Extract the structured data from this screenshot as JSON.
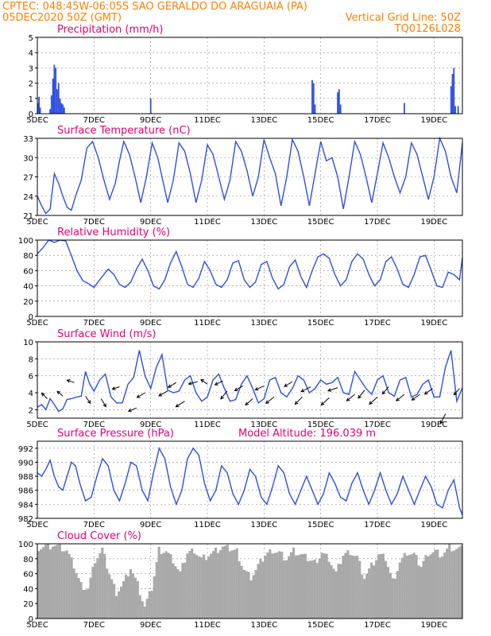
{
  "header": {
    "line1": "CPTEC:   048:45W-06:05S  SAO GERALDO DO ARAGUAIA (PA)",
    "line2_left": "05DEC2020 50Z (GMT)",
    "line2_right": "Vertical Grid Line: 50Z",
    "line3_right": "TQ0126L028"
  },
  "colors": {
    "header": "#ff8000",
    "panel_title": "#e8006e",
    "series": "#2f4fe0",
    "cloud": "#a9a9a9",
    "arrow": "#000000"
  },
  "x_axis": {
    "labels": [
      "5DEC",
      "7DEC",
      "9DEC",
      "11DEC",
      "13DEC",
      "15DEC",
      "17DEC",
      "19DEC"
    ],
    "label_days": [
      5,
      7,
      9,
      11,
      13,
      15,
      17,
      19
    ],
    "day_range": [
      5,
      20
    ]
  },
  "chart_data": [
    {
      "id": "precip",
      "type": "bar",
      "title": "Precipitation (mm/h)",
      "ylim": [
        0,
        5
      ],
      "yticks": [
        0,
        1,
        2,
        3,
        4,
        5
      ],
      "x": [
        5.02,
        5.06,
        5.1,
        5.45,
        5.5,
        5.55,
        5.6,
        5.65,
        5.7,
        5.75,
        5.8,
        5.85,
        5.9,
        5.95,
        9.0,
        14.7,
        14.75,
        14.8,
        15.6,
        15.65,
        15.7,
        17.95,
        19.6,
        19.65,
        19.7,
        19.75,
        19.85
      ],
      "values": [
        0.7,
        1.1,
        0.4,
        0.3,
        1.2,
        2.3,
        3.2,
        3.0,
        1.6,
        2.0,
        1.0,
        0.7,
        0.6,
        0.4,
        1.0,
        2.2,
        2.0,
        0.6,
        1.4,
        1.6,
        0.6,
        0.7,
        1.8,
        2.6,
        3.0,
        0.5,
        0.5
      ]
    },
    {
      "id": "temp",
      "type": "line",
      "title": "Surface Temperature (nC)",
      "ylim": [
        21,
        33
      ],
      "yticks": [
        21,
        24,
        27,
        30,
        33
      ],
      "x": [
        5,
        5.15,
        5.3,
        5.45,
        5.6,
        5.75,
        5.9,
        6.05,
        6.2,
        6.35,
        6.55,
        6.75,
        6.95,
        7.15,
        7.35,
        7.55,
        7.75,
        7.9,
        8.05,
        8.25,
        8.45,
        8.65,
        8.85,
        9.05,
        9.25,
        9.45,
        9.6,
        9.8,
        10.0,
        10.2,
        10.4,
        10.6,
        10.8,
        11.0,
        11.2,
        11.4,
        11.6,
        11.8,
        12.0,
        12.2,
        12.4,
        12.6,
        12.8,
        13.0,
        13.2,
        13.4,
        13.6,
        13.8,
        14.0,
        14.2,
        14.4,
        14.6,
        14.8,
        15.0,
        15.2,
        15.4,
        15.6,
        15.8,
        16.0,
        16.2,
        16.4,
        16.6,
        16.8,
        17.0,
        17.2,
        17.4,
        17.6,
        17.8,
        18.0,
        18.2,
        18.4,
        18.6,
        18.8,
        19.0,
        19.2,
        19.4,
        19.6,
        19.8,
        20.0
      ],
      "values": [
        24,
        22.5,
        21.3,
        22,
        27.5,
        26,
        24,
        22.3,
        21.8,
        24,
        26.5,
        31.5,
        32.5,
        30,
        26.5,
        23.5,
        26,
        29.5,
        32.5,
        30.5,
        27,
        23,
        27,
        32.3,
        30,
        26,
        23,
        26.5,
        32.3,
        31,
        27.5,
        23,
        26.5,
        32,
        30.5,
        27,
        23.5,
        26.5,
        32.5,
        31,
        28,
        24,
        27,
        32.8,
        30,
        27.5,
        22.5,
        27,
        32.8,
        31,
        27,
        22.5,
        27.5,
        32.5,
        29.5,
        30,
        27,
        22,
        27,
        32.5,
        30.5,
        27,
        23,
        27.5,
        32.3,
        30,
        27,
        24.5,
        27,
        32.3,
        30.5,
        27,
        23.5,
        27,
        33,
        31,
        27,
        24.5,
        32.3
      ]
    },
    {
      "id": "rh",
      "type": "line",
      "title": "Relative Humidity (%)",
      "ylim": [
        0,
        100
      ],
      "yticks": [
        0,
        20,
        40,
        60,
        80,
        100
      ],
      "x": [
        5,
        5.2,
        5.4,
        5.6,
        5.8,
        6.0,
        6.2,
        6.4,
        6.6,
        6.8,
        7.0,
        7.2,
        7.5,
        7.7,
        7.9,
        8.1,
        8.3,
        8.5,
        8.7,
        8.9,
        9.1,
        9.3,
        9.5,
        9.7,
        9.9,
        10.1,
        10.3,
        10.5,
        10.7,
        10.9,
        11.1,
        11.3,
        11.5,
        11.7,
        11.9,
        12.1,
        12.3,
        12.5,
        12.7,
        12.9,
        13.1,
        13.3,
        13.5,
        13.7,
        13.9,
        14.1,
        14.3,
        14.5,
        14.7,
        14.9,
        15.1,
        15.3,
        15.5,
        15.7,
        15.9,
        16.1,
        16.3,
        16.5,
        16.7,
        16.9,
        17.1,
        17.3,
        17.5,
        17.7,
        17.9,
        18.1,
        18.3,
        18.5,
        18.7,
        18.9,
        19.1,
        19.3,
        19.5,
        19.7,
        19.9,
        20.0
      ],
      "values": [
        82,
        90,
        100,
        97,
        100,
        99,
        80,
        60,
        47,
        43,
        38,
        48,
        62,
        55,
        42,
        38,
        45,
        62,
        75,
        60,
        40,
        36,
        48,
        70,
        85,
        65,
        42,
        38,
        50,
        72,
        60,
        42,
        38,
        48,
        70,
        73,
        48,
        38,
        45,
        68,
        72,
        50,
        36,
        42,
        65,
        74,
        52,
        38,
        60,
        78,
        82,
        76,
        55,
        40,
        48,
        72,
        82,
        75,
        55,
        40,
        48,
        72,
        78,
        62,
        42,
        38,
        55,
        78,
        80,
        60,
        40,
        38,
        58,
        55,
        48,
        77
      ]
    },
    {
      "id": "wind",
      "type": "line",
      "title": "Surface Wind (m/s)",
      "ylim": [
        1,
        10
      ],
      "yticks": [
        2,
        4,
        6,
        8,
        10
      ],
      "x": [
        5,
        5.15,
        5.3,
        5.45,
        5.6,
        5.75,
        5.9,
        6.05,
        6.2,
        6.4,
        6.55,
        6.7,
        6.85,
        7.0,
        7.2,
        7.4,
        7.6,
        7.8,
        8.0,
        8.2,
        8.4,
        8.6,
        8.8,
        9.0,
        9.2,
        9.4,
        9.6,
        9.8,
        10.0,
        10.2,
        10.4,
        10.6,
        10.8,
        11.0,
        11.2,
        11.4,
        11.6,
        11.8,
        12.0,
        12.2,
        12.4,
        12.6,
        12.8,
        13.0,
        13.2,
        13.4,
        13.6,
        13.8,
        14.0,
        14.2,
        14.4,
        14.6,
        14.8,
        15.0,
        15.2,
        15.4,
        15.6,
        15.8,
        16.0,
        16.2,
        16.4,
        16.6,
        16.8,
        17.0,
        17.2,
        17.4,
        17.6,
        17.8,
        18.0,
        18.2,
        18.4,
        18.6,
        18.8,
        19.0,
        19.2,
        19.4,
        19.6,
        19.8,
        20.0
      ],
      "values": [
        2.3,
        2.6,
        2.0,
        3.3,
        2.6,
        1.8,
        2.1,
        3.2,
        3.3,
        3.5,
        3.6,
        6.5,
        5.0,
        4.2,
        5.5,
        6.2,
        3.5,
        2.8,
        2.8,
        5.0,
        5.8,
        9.0,
        6.0,
        4.5,
        7.0,
        8.5,
        4.3,
        4.0,
        4.2,
        5.5,
        6.0,
        4.0,
        3.0,
        3.5,
        5.5,
        6.2,
        4.5,
        3.0,
        3.2,
        5.0,
        6.0,
        4.5,
        2.8,
        3.3,
        5.5,
        5.8,
        4.0,
        3.5,
        4.5,
        6.0,
        5.5,
        4.0,
        4.5,
        5.5,
        5.0,
        5.2,
        5.8,
        4.0,
        3.8,
        6.5,
        5.5,
        4.5,
        3.8,
        5.5,
        6.0,
        4.0,
        3.6,
        5.5,
        5.8,
        3.5,
        3.8,
        5.0,
        5.5,
        3.5,
        3.5,
        7.0,
        9.0,
        3.0,
        4.6
      ]
    },
    {
      "id": "pressure",
      "type": "line",
      "title": "Surface Pressure (hPa)",
      "annotation": "Model Altitude: 196.039 m",
      "ylim": [
        982,
        993
      ],
      "yticks": [
        982,
        984,
        986,
        988,
        990,
        992
      ],
      "x": [
        5,
        5.15,
        5.3,
        5.45,
        5.6,
        5.75,
        5.9,
        6.05,
        6.2,
        6.35,
        6.5,
        6.7,
        6.9,
        7.1,
        7.3,
        7.5,
        7.7,
        7.9,
        8.1,
        8.3,
        8.5,
        8.7,
        8.9,
        9.1,
        9.3,
        9.5,
        9.7,
        9.9,
        10.1,
        10.3,
        10.5,
        10.7,
        10.9,
        11.1,
        11.3,
        11.5,
        11.7,
        11.9,
        12.1,
        12.3,
        12.5,
        12.7,
        12.9,
        13.1,
        13.3,
        13.5,
        13.7,
        13.9,
        14.1,
        14.3,
        14.5,
        14.7,
        14.9,
        15.1,
        15.3,
        15.5,
        15.7,
        15.9,
        16.1,
        16.3,
        16.5,
        16.7,
        16.9,
        17.1,
        17.3,
        17.5,
        17.7,
        17.9,
        18.1,
        18.3,
        18.5,
        18.7,
        18.9,
        19.1,
        19.3,
        19.5,
        19.7,
        19.9,
        20.0
      ],
      "values": [
        988.5,
        988,
        989,
        990.3,
        988,
        986.5,
        986,
        988,
        990,
        989.5,
        987,
        984.5,
        985,
        988,
        990.5,
        989.5,
        986,
        984.5,
        987,
        990,
        989.5,
        986,
        984.5,
        988.5,
        992,
        990.5,
        986.5,
        984,
        986,
        990.5,
        992,
        991,
        987,
        984.5,
        986,
        989.5,
        988.5,
        985.5,
        984,
        986,
        989,
        988,
        985,
        984,
        986.5,
        989.5,
        988.5,
        985.5,
        984,
        986,
        988,
        986,
        984,
        985.5,
        988.5,
        987,
        985,
        984.5,
        987,
        988.5,
        986,
        984,
        986,
        988.5,
        986,
        984,
        985.5,
        988,
        986,
        984,
        986,
        988,
        986.5,
        984,
        983.5,
        986,
        987.5,
        983.5,
        982.5
      ]
    },
    {
      "id": "cloud",
      "type": "area",
      "title": "Cloud Cover (%)",
      "ylim": [
        0,
        100
      ],
      "yticks": [
        0,
        20,
        40,
        60,
        80,
        100
      ],
      "x": [
        5,
        5.25,
        5.5,
        5.75,
        6.0,
        6.25,
        6.5,
        6.75,
        7.0,
        7.25,
        7.5,
        7.75,
        8.0,
        8.25,
        8.5,
        8.75,
        9.0,
        9.25,
        9.5,
        9.75,
        10.0,
        10.25,
        10.5,
        10.75,
        11.0,
        11.25,
        11.5,
        11.75,
        12.0,
        12.25,
        12.5,
        12.75,
        13.0,
        13.25,
        13.5,
        13.75,
        14.0,
        14.25,
        14.5,
        14.75,
        15.0,
        15.25,
        15.5,
        15.75,
        16.0,
        16.25,
        16.5,
        16.75,
        17.0,
        17.25,
        17.5,
        17.75,
        18.0,
        18.25,
        18.5,
        18.75,
        19.0,
        19.25,
        19.5,
        19.75,
        20.0
      ],
      "values": [
        95,
        97,
        98,
        96,
        90,
        70,
        45,
        40,
        78,
        92,
        60,
        35,
        48,
        68,
        45,
        15,
        40,
        92,
        90,
        78,
        60,
        88,
        92,
        80,
        85,
        90,
        95,
        93,
        90,
        65,
        55,
        70,
        85,
        92,
        88,
        80,
        90,
        85,
        80,
        75,
        88,
        80,
        60,
        85,
        90,
        82,
        55,
        70,
        85,
        80,
        50,
        75,
        88,
        85,
        70,
        88,
        90,
        85,
        95,
        92,
        93
      ]
    }
  ],
  "wind_arrows": [
    {
      "day": 5.35,
      "speed": 3.3,
      "dx": -7,
      "dy": -7
    },
    {
      "day": 5.9,
      "speed": 3.6,
      "dx": -7,
      "dy": -6
    },
    {
      "day": 6.3,
      "speed": 5.2,
      "dx": -9,
      "dy": -3
    },
    {
      "day": 6.7,
      "speed": 3.6,
      "dx": 6,
      "dy": 9
    },
    {
      "day": 7.25,
      "speed": 3.3,
      "dx": 6,
      "dy": 10
    },
    {
      "day": 7.9,
      "speed": 4.7,
      "dx": -9,
      "dy": 3
    },
    {
      "day": 8.5,
      "speed": 2.2,
      "dx": -10,
      "dy": 4
    },
    {
      "day": 8.8,
      "speed": 4.0,
      "dx": -10,
      "dy": 6
    },
    {
      "day": 9.6,
      "speed": 4.2,
      "dx": -11,
      "dy": 6
    },
    {
      "day": 9.9,
      "speed": 5.2,
      "dx": -10,
      "dy": 6
    },
    {
      "day": 10.2,
      "speed": 3.0,
      "dx": -11,
      "dy": 7
    },
    {
      "day": 10.65,
      "speed": 5.3,
      "dx": -11,
      "dy": 3
    },
    {
      "day": 11.0,
      "speed": 5.0,
      "dx": -8,
      "dy": -6
    },
    {
      "day": 11.55,
      "speed": 5.4,
      "dx": -10,
      "dy": 5
    },
    {
      "day": 11.7,
      "speed": 4.2,
      "dx": -8,
      "dy": 10
    },
    {
      "day": 12.25,
      "speed": 4.8,
      "dx": -10,
      "dy": 6
    },
    {
      "day": 12.6,
      "speed": 3.3,
      "dx": -9,
      "dy": 8
    },
    {
      "day": 13.0,
      "speed": 4.8,
      "dx": -11,
      "dy": 5
    },
    {
      "day": 13.35,
      "speed": 3.5,
      "dx": -10,
      "dy": 8
    },
    {
      "day": 14.0,
      "speed": 5.3,
      "dx": -10,
      "dy": 6
    },
    {
      "day": 14.35,
      "speed": 3.5,
      "dx": -9,
      "dy": 9
    },
    {
      "day": 14.65,
      "speed": 4.7,
      "dx": -12,
      "dy": 6
    },
    {
      "day": 15.3,
      "speed": 3.4,
      "dx": -10,
      "dy": 9
    },
    {
      "day": 15.6,
      "speed": 4.6,
      "dx": -12,
      "dy": 4
    },
    {
      "day": 16.2,
      "speed": 3.8,
      "dx": -10,
      "dy": 8
    },
    {
      "day": 16.55,
      "speed": 4.3,
      "dx": -8,
      "dy": 10
    },
    {
      "day": 17.0,
      "speed": 3.5,
      "dx": -10,
      "dy": 9
    },
    {
      "day": 17.4,
      "speed": 4.7,
      "dx": -8,
      "dy": 9
    },
    {
      "day": 17.95,
      "speed": 3.8,
      "dx": -10,
      "dy": 8
    },
    {
      "day": 18.5,
      "speed": 3.8,
      "dx": -10,
      "dy": 7
    },
    {
      "day": 18.95,
      "speed": 4.5,
      "dx": -10,
      "dy": 7
    },
    {
      "day": 19.4,
      "speed": 1.5,
      "dx": -6,
      "dy": 12
    },
    {
      "day": 19.9,
      "speed": 4.5,
      "dx": -7,
      "dy": 8
    }
  ]
}
